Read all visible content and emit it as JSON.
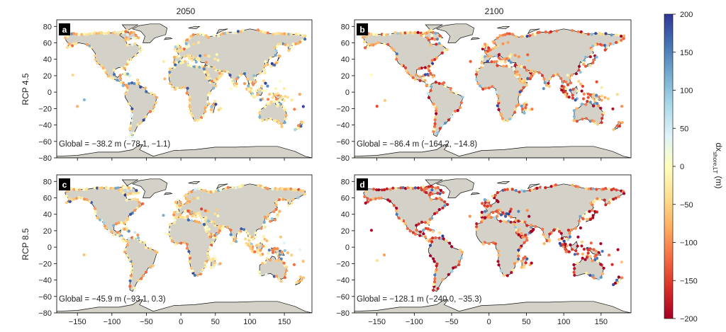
{
  "figure": {
    "column_titles": [
      "2050",
      "2100"
    ],
    "row_labels": [
      "RCP 4.5",
      "RCP 8.5"
    ],
    "colorbar": {
      "label_main": "dx",
      "label_sub": "shore,LT",
      "label_unit": " (m)",
      "ticks": [
        200,
        150,
        100,
        50,
        0,
        -50,
        -100,
        -150,
        -200
      ],
      "tick_labels": [
        "200",
        "150",
        "100",
        "50",
        "0",
        "−50",
        "−100",
        "−150",
        "−200"
      ],
      "range": [
        -200,
        200
      ],
      "colors": [
        "#a50026",
        "#d73027",
        "#f46d43",
        "#fdae61",
        "#fee090",
        "#ffffbf",
        "#e0f3f8",
        "#abd9e9",
        "#74add1",
        "#4575b4",
        "#313695"
      ]
    },
    "land_color": "#d4d2c8",
    "coast_color": "#111111"
  },
  "chart_data": [
    {
      "type": "scatter",
      "panel": "a",
      "scenario": "RCP 4.5",
      "year": "2050",
      "annotation": "Global = −38.2 m (−78.1, −1.1)",
      "global_median_m": -38.2,
      "ci": [
        -78.1,
        -1.1
      ],
      "xlim": [
        -180,
        190
      ],
      "ylim": [
        -80,
        88
      ],
      "xticks": [
        -150,
        -100,
        -50,
        0,
        50,
        100,
        150
      ],
      "yticks": [
        80,
        60,
        40,
        20,
        0,
        -20,
        -40,
        -60,
        -80
      ],
      "xtick_labels": [
        "−150",
        "−100",
        "−50",
        "0",
        "50",
        "100",
        "150"
      ],
      "ytick_labels": [
        "80",
        "60",
        "40",
        "20",
        "0",
        "−20",
        "−40",
        "−60",
        "−80"
      ],
      "points_note": "coastal points, lon/lat with colour value dx in m"
    },
    {
      "type": "scatter",
      "panel": "b",
      "scenario": "RCP 4.5",
      "year": "2100",
      "annotation": "Global = −86.4 m (−164.2, −14.8)",
      "global_median_m": -86.4,
      "ci": [
        -164.2,
        -14.8
      ],
      "xlim": [
        -180,
        190
      ],
      "ylim": [
        -80,
        88
      ],
      "xticks": [
        -150,
        -100,
        -50,
        0,
        50,
        100,
        150
      ],
      "yticks": [
        80,
        60,
        40,
        20,
        0,
        -20,
        -40,
        -60,
        -80
      ],
      "xtick_labels": [
        "−150",
        "−100",
        "−50",
        "0",
        "50",
        "100",
        "150"
      ],
      "ytick_labels": [
        "80",
        "60",
        "40",
        "20",
        "0",
        "−20",
        "−40",
        "−60",
        "−80"
      ]
    },
    {
      "type": "scatter",
      "panel": "c",
      "scenario": "RCP 8.5",
      "year": "2050",
      "annotation": "Global = −45.9 m (−93.1, 0.3)",
      "global_median_m": -45.9,
      "ci": [
        -93.1,
        0.3
      ],
      "xlim": [
        -180,
        190
      ],
      "ylim": [
        -80,
        88
      ],
      "xticks": [
        -150,
        -100,
        -50,
        0,
        50,
        100,
        150
      ],
      "yticks": [
        80,
        60,
        40,
        20,
        0,
        -20,
        -40,
        -60,
        -80
      ],
      "xtick_labels": [
        "−150",
        "−100",
        "−50",
        "0",
        "50",
        "100",
        "150"
      ],
      "ytick_labels": [
        "80",
        "60",
        "40",
        "20",
        "0",
        "−20",
        "−40",
        "−60",
        "−80"
      ]
    },
    {
      "type": "scatter",
      "panel": "d",
      "scenario": "RCP 8.5",
      "year": "2100",
      "annotation": "Global = −128.1 m (−240.0, −35.3)",
      "global_median_m": -128.1,
      "ci": [
        -240.0,
        -35.3
      ],
      "xlim": [
        -180,
        190
      ],
      "ylim": [
        -80,
        88
      ],
      "xticks": [
        -150,
        -100,
        -50,
        0,
        50,
        100,
        150
      ],
      "yticks": [
        80,
        60,
        40,
        20,
        0,
        -20,
        -40,
        -60,
        -80
      ],
      "xtick_labels": [
        "−150",
        "−100",
        "−50",
        "0",
        "50",
        "100",
        "150"
      ],
      "ytick_labels": [
        "80",
        "60",
        "40",
        "20",
        "0",
        "−20",
        "−40",
        "−60",
        "−80"
      ]
    }
  ]
}
